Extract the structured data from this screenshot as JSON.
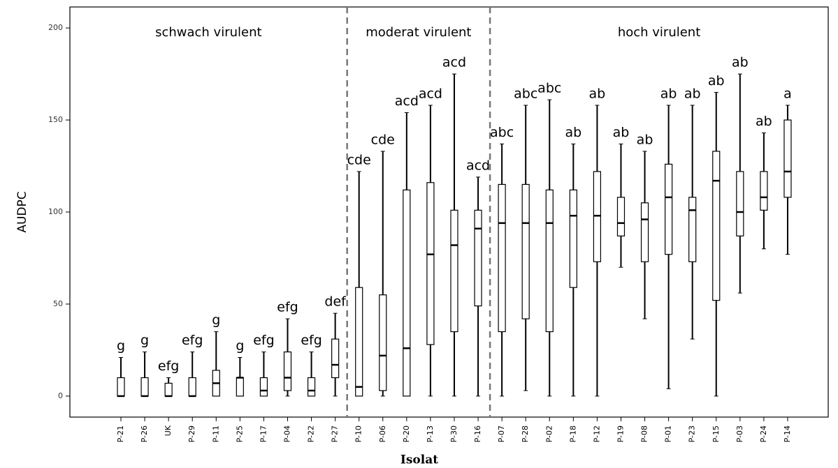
{
  "chart_data": {
    "type": "box",
    "xlabel": "Isolat",
    "ylabel": "AUDPC",
    "group_labels": [
      "schwach virulent",
      "moderat virulent",
      "hoch virulent"
    ],
    "categories": [
      "P-21",
      "P-26",
      "UK",
      "P-29",
      "P-11",
      "P-25",
      "P-17",
      "P-04",
      "P-22",
      "P-27",
      "P-10",
      "P-06",
      "P-20",
      "P-13",
      "P-30",
      "P-16",
      "P-07",
      "P-28",
      "P-02",
      "P-18",
      "P-12",
      "P-19",
      "P-08",
      "P-01",
      "P-23",
      "P-15",
      "P-03",
      "P-24",
      "P-14"
    ],
    "min": [
      0,
      0,
      0,
      0,
      0,
      0,
      0,
      0,
      0,
      0,
      0,
      0,
      0,
      0,
      0,
      0,
      0,
      3,
      0,
      0,
      0,
      70,
      42,
      4,
      31,
      0,
      56,
      80,
      77
    ],
    "q1": [
      0,
      0,
      0,
      0,
      0,
      0,
      0,
      3,
      0,
      10,
      0,
      3,
      0,
      28,
      35,
      49,
      35,
      42,
      35,
      59,
      73,
      87,
      73,
      77,
      73,
      52,
      87,
      101,
      108
    ],
    "median": [
      0,
      0,
      0,
      0,
      7,
      10,
      3,
      10,
      3,
      17,
      5,
      22,
      26,
      77,
      82,
      91,
      94,
      94,
      94,
      98,
      98,
      94,
      96,
      108,
      101,
      117,
      100,
      108,
      122
    ],
    "q3": [
      10,
      10,
      7,
      10,
      14,
      10,
      10,
      24,
      10,
      31,
      59,
      55,
      112,
      116,
      101,
      101,
      115,
      115,
      112,
      112,
      122,
      108,
      105,
      126,
      108,
      133,
      122,
      122,
      150
    ],
    "max": [
      21,
      24,
      10,
      24,
      35,
      21,
      24,
      42,
      24,
      45,
      122,
      133,
      154,
      158,
      175,
      119,
      137,
      158,
      161,
      137,
      158,
      137,
      133,
      158,
      158,
      165,
      175,
      143,
      158
    ],
    "letters": [
      "g",
      "g",
      "efg",
      "efg",
      "g",
      "g",
      "efg",
      "efg",
      "efg",
      "def",
      "cde",
      "cde",
      "acd",
      "acd",
      "acd",
      "acd",
      "abc",
      "abc",
      "abc",
      "ab",
      "ab",
      "ab",
      "ab",
      "ab",
      "ab",
      "ab",
      "ab",
      "ab",
      "a"
    ],
    "ylim": [
      -11.4,
      211.4
    ],
    "yticks": [
      0,
      50,
      100,
      150,
      200
    ],
    "color": "#000000"
  }
}
